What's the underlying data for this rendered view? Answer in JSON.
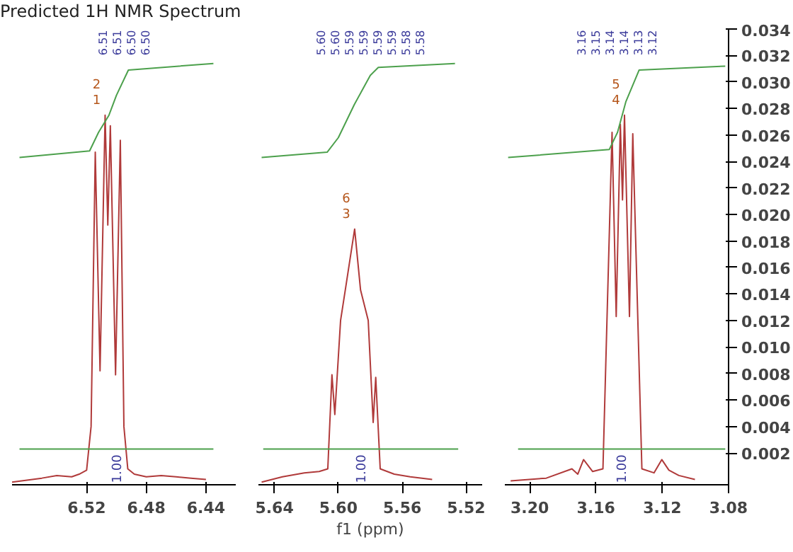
{
  "chart_data": [
    {
      "type": "line",
      "title": "Predicted 1H NMR Spectrum",
      "xlim": [
        6.57,
        6.42
      ],
      "xticks": [
        6.52,
        6.48,
        6.44
      ],
      "ylim": [
        -0.0004,
        0.034
      ],
      "tick_labels": "x",
      "series": [
        {
          "color": "#b03a3a",
          "x": [
            6.57,
            6.55,
            6.54,
            6.53,
            6.525,
            6.52,
            6.517,
            6.5142,
            6.511,
            6.5076,
            6.5058,
            6.5041,
            6.5006,
            6.4974,
            6.495,
            6.4924,
            6.488,
            6.48,
            6.47,
            6.46,
            6.45,
            6.44
          ],
          "values": [
            -0.0002,
            0.0001,
            0.0003,
            0.0002,
            0.0004,
            0.0007,
            0.004,
            0.0247,
            0.0082,
            0.0275,
            0.0192,
            0.0267,
            0.0079,
            0.0256,
            0.004,
            0.0008,
            0.0004,
            0.0002,
            0.0003,
            0.0002,
            0.0001,
            0.0
          ]
        },
        {
          "color": "#4ca04c",
          "x": [
            6.565,
            6.518,
            6.512,
            6.505,
            6.5,
            6.492,
            6.435
          ],
          "values": [
            0.0243,
            0.0248,
            0.0262,
            0.0275,
            0.029,
            0.0309,
            0.0314
          ]
        },
        {
          "color": "#4ca04c",
          "x": [
            6.565,
            6.435
          ],
          "values": [
            0.0023,
            0.0023
          ]
        }
      ],
      "annotations": [
        "6.51",
        "6.51",
        "6.50",
        "6.50",
        {
          "text": "2",
          "x": 6.5076,
          "y": 0.0275
        },
        {
          "text": "1",
          "x": 6.5076,
          "y": 0.0275
        },
        {
          "text": "1.00",
          "x": 6.5,
          "y": 0.0023
        }
      ]
    },
    {
      "type": "line",
      "xlabel": "f1 (ppm)",
      "xlim": [
        5.65,
        5.51
      ],
      "xticks": [
        5.64,
        {
          "value": 5.6,
          "label": "5.60"
        },
        5.56,
        5.52
      ],
      "ylim": [
        -0.0004,
        0.034
      ],
      "tick_labels": "x",
      "series": [
        {
          "color": "#b03a3a",
          "x": [
            5.648,
            5.635,
            5.6213,
            5.612,
            5.6066,
            5.604,
            5.6022,
            5.5986,
            5.5954,
            5.5898,
            5.5861,
            5.5813,
            5.5782,
            5.5766,
            5.5738,
            5.565,
            5.555,
            5.5413
          ],
          "values": [
            -0.0002,
            0.0002,
            0.0005,
            0.0006,
            0.0008,
            0.0079,
            0.0049,
            0.012,
            0.0145,
            0.0189,
            0.0143,
            0.012,
            0.0043,
            0.0077,
            0.0008,
            0.0004,
            0.0002,
            0.0
          ]
        },
        {
          "color": "#4ca04c",
          "x": [
            5.648,
            5.607,
            5.6,
            5.59,
            5.58,
            5.575,
            5.527
          ],
          "values": [
            0.0243,
            0.0247,
            0.0258,
            0.0283,
            0.0305,
            0.0311,
            0.0314
          ]
        },
        {
          "color": "#4ca04c",
          "x": [
            5.647,
            5.525
          ],
          "values": [
            0.0023,
            0.0023
          ]
        }
      ],
      "annotations": [
        "5.60",
        "5.60",
        "5.59",
        "5.59",
        "5.59",
        "5.59",
        "5.58",
        "5.58",
        {
          "text": "6",
          "x": 5.5898,
          "y": 0.0189
        },
        {
          "text": "3",
          "x": 5.5898,
          "y": 0.0189
        },
        {
          "text": "1.00",
          "x": 5.586,
          "y": 0.0023
        }
      ]
    },
    {
      "type": "line",
      "xlim": [
        3.215,
        3.08
      ],
      "xticks": [
        {
          "value": 3.2,
          "label": "3.20"
        },
        3.16,
        3.12,
        3.08
      ],
      "ylim": [
        -0.0004,
        0.034
      ],
      "yticks": [
        0.002,
        0.004,
        0.006,
        0.008,
        {
          "value": 0.01,
          "label": "0.010"
        },
        0.012,
        0.014,
        0.016,
        0.018,
        {
          "value": 0.02,
          "label": "0.020"
        },
        0.022,
        0.024,
        0.026,
        0.028,
        {
          "value": 0.03,
          "label": "0.030"
        },
        0.032,
        0.034
      ],
      "series": [
        {
          "color": "#b03a3a",
          "x": [
            3.2115,
            3.19,
            3.1745,
            3.171,
            3.1675,
            3.162,
            3.1558,
            3.1503,
            3.1478,
            3.1453,
            3.144,
            3.1428,
            3.1398,
            3.1378,
            3.1323,
            3.125,
            3.1203,
            3.116,
            3.11,
            3.1003
          ],
          "values": [
            -0.0001,
            0.0001,
            0.0008,
            0.0004,
            0.0015,
            0.0006,
            0.0008,
            0.0262,
            0.0123,
            0.0268,
            0.0211,
            0.0275,
            0.0123,
            0.0261,
            0.0008,
            0.0005,
            0.0015,
            0.0007,
            0.0003,
            0.0
          ]
        },
        {
          "color": "#4ca04c",
          "x": [
            3.213,
            3.152,
            3.147,
            3.142,
            3.134,
            3.082
          ],
          "values": [
            0.0243,
            0.0249,
            0.0262,
            0.0285,
            0.0309,
            0.0312
          ]
        },
        {
          "color": "#4ca04c",
          "x": [
            3.207,
            3.082
          ],
          "values": [
            0.0023,
            0.0023
          ]
        }
      ],
      "annotations": [
        "3.16",
        "3.15",
        "3.14",
        "3.14",
        "3.13",
        "3.12",
        {
          "text": "5",
          "x": 3.1428,
          "y": 0.0275
        },
        {
          "text": "4",
          "x": 3.1428,
          "y": 0.0275
        },
        {
          "text": "1.00",
          "x": 3.145,
          "y": 0.0023
        }
      ]
    }
  ]
}
